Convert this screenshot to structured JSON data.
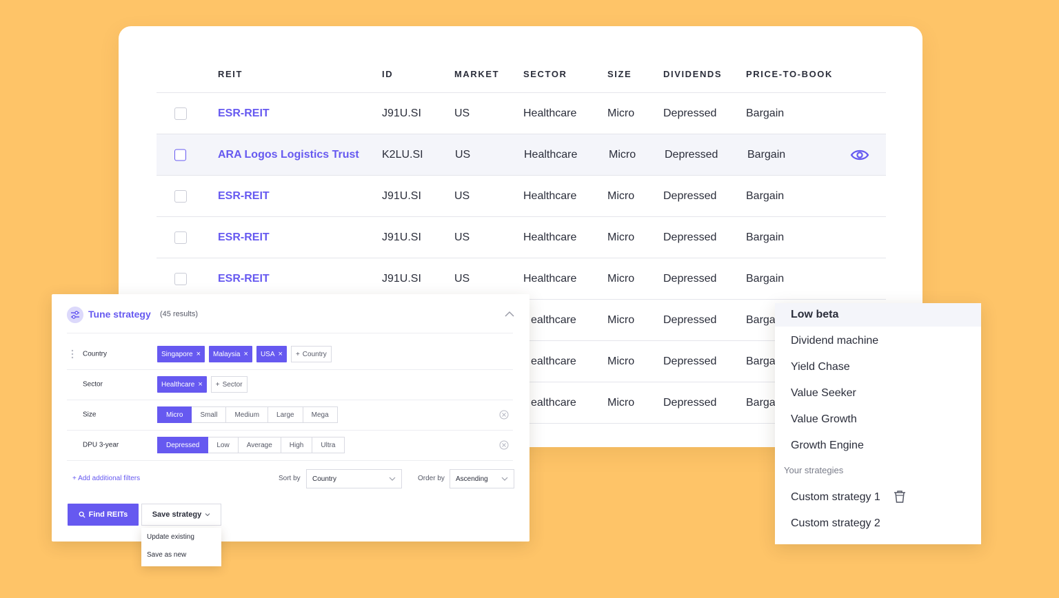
{
  "table": {
    "headers": [
      "REIT",
      "ID",
      "MARKET",
      "SECTOR",
      "SIZE",
      "DIVIDENDS",
      "PRICE-TO-BOOK"
    ],
    "rows": [
      {
        "name": "ESR-REIT",
        "id": "J91U.SI",
        "market": "US",
        "sector": "Healthcare",
        "size": "Micro",
        "dividends": "Depressed",
        "ptb": "Bargain"
      },
      {
        "name": "ARA Logos Logistics Trust",
        "id": "K2LU.SI",
        "market": "US",
        "sector": "Healthcare",
        "size": "Micro",
        "dividends": "Depressed",
        "ptb": "Bargain"
      },
      {
        "name": "ESR-REIT",
        "id": "J91U.SI",
        "market": "US",
        "sector": "Healthcare",
        "size": "Micro",
        "dividends": "Depressed",
        "ptb": "Bargain"
      },
      {
        "name": "ESR-REIT",
        "id": "J91U.SI",
        "market": "US",
        "sector": "Healthcare",
        "size": "Micro",
        "dividends": "Depressed",
        "ptb": "Bargain"
      },
      {
        "name": "ESR-REIT",
        "id": "J91U.SI",
        "market": "US",
        "sector": "Healthcare",
        "size": "Micro",
        "dividends": "Depressed",
        "ptb": "Bargain"
      },
      {
        "name": "",
        "id": "",
        "market": "",
        "sector": "ealthcare",
        "size": "Micro",
        "dividends": "Depressed",
        "ptb": "Barga"
      },
      {
        "name": "",
        "id": "",
        "market": "",
        "sector": "ealthcare",
        "size": "Micro",
        "dividends": "Depressed",
        "ptb": "Barga"
      },
      {
        "name": "",
        "id": "",
        "market": "",
        "sector": "ealthcare",
        "size": "Micro",
        "dividends": "Depressed",
        "ptb": "Barga"
      }
    ],
    "row_action_icon": "eye-icon"
  },
  "tune": {
    "title": "Tune strategy",
    "count": "(45 results)",
    "filters": {
      "country": {
        "label": "Country",
        "chips": [
          "Singapore",
          "Malaysia",
          "USA"
        ],
        "add": "Country"
      },
      "sector": {
        "label": "Sector",
        "chips": [
          "Healthcare"
        ],
        "add": "Sector"
      },
      "size": {
        "label": "Size",
        "options": [
          "Micro",
          "Small",
          "Medium",
          "Large",
          "Mega"
        ],
        "selected": "Micro"
      },
      "dpu": {
        "label": "DPU 3-year",
        "options": [
          "Depressed",
          "Low",
          "Average",
          "High",
          "Ultra"
        ],
        "selected": "Depressed"
      }
    },
    "add_filters": "Add additional filters",
    "sort_by_label": "Sort by",
    "sort_by_value": "Country",
    "order_by_label": "Order by",
    "order_by_value": "Ascending",
    "find_button": "Find REITs",
    "save_button": "Save strategy",
    "save_menu": [
      "Update existing",
      "Save as new"
    ]
  },
  "strategies": {
    "presets": [
      "Low beta",
      "Dividend machine",
      "Yield Chase",
      "Value Seeker",
      "Value Growth",
      "Growth Engine"
    ],
    "active": "Low beta",
    "section_label": "Your strategies",
    "custom": [
      "Custom strategy 1",
      "Custom strategy 2"
    ]
  },
  "colors": {
    "background": "#FEC468",
    "accent": "#6659F0",
    "text": "#2A2D3A"
  }
}
